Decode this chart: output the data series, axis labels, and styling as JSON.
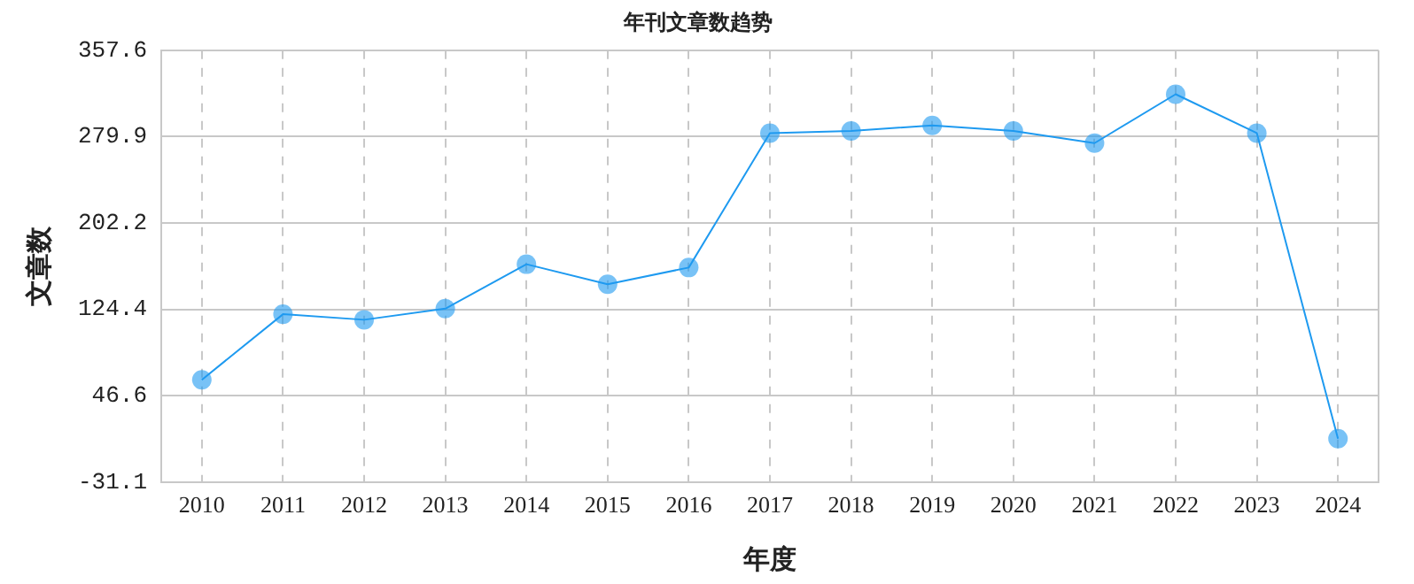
{
  "chart_data": {
    "type": "line",
    "title": "年刊文章数趋势",
    "xlabel": "年度",
    "ylabel": "文章数",
    "categories": [
      "2010",
      "2011",
      "2012",
      "2013",
      "2014",
      "2015",
      "2016",
      "2017",
      "2018",
      "2019",
      "2020",
      "2021",
      "2022",
      "2023",
      "2024"
    ],
    "series": [
      {
        "color": "#1e9af0",
        "values": [
          61,
          120,
          115,
          125,
          165,
          147,
          162,
          283,
          285,
          290,
          285,
          274,
          318,
          283,
          8
        ]
      }
    ],
    "ylim": [
      -31.1,
      357.6
    ],
    "yticks": [
      -31.1,
      46.6,
      124.4,
      202.2,
      279.9,
      357.6
    ],
    "grid": true,
    "legend": false,
    "marker": "circle",
    "line_style": "solid"
  }
}
